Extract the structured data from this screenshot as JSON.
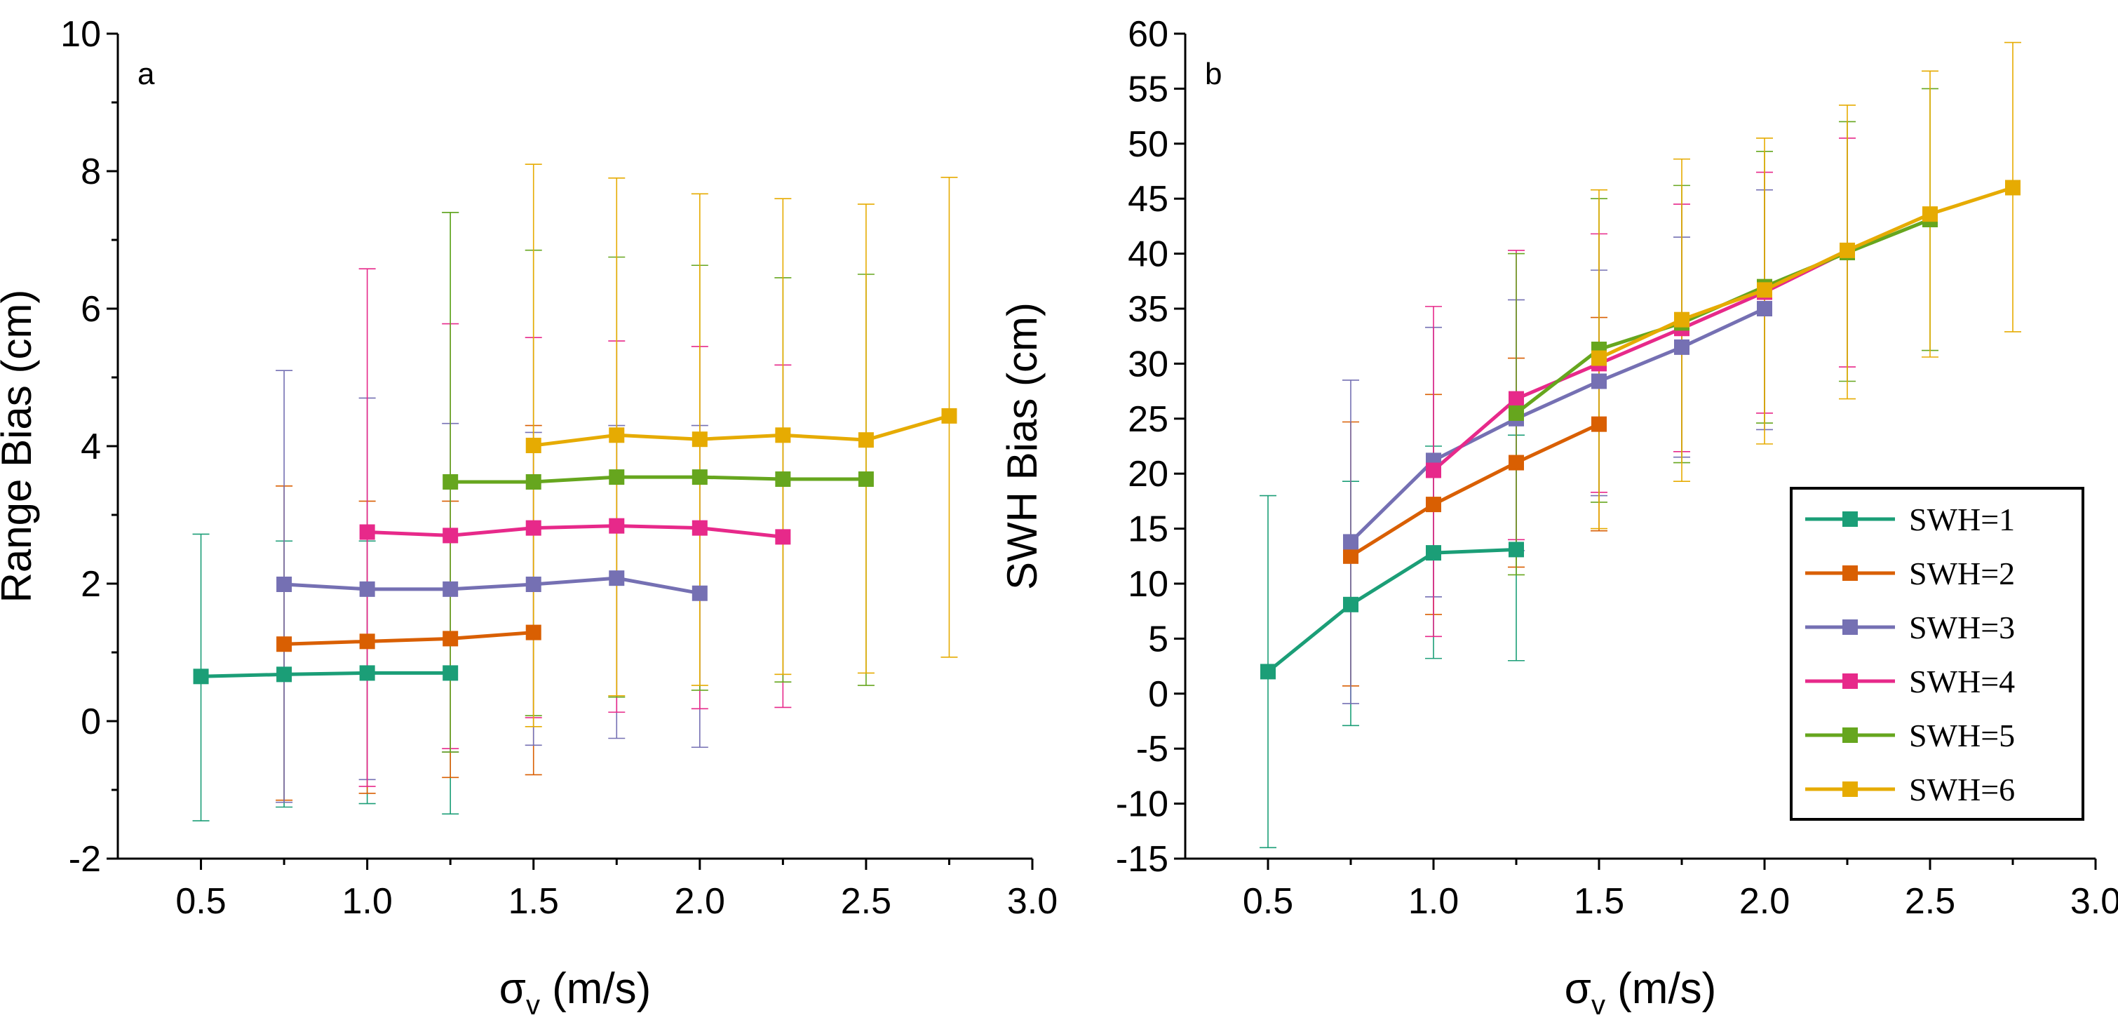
{
  "series_meta": [
    {
      "name": "SWH=1",
      "color": "#1b9e77"
    },
    {
      "name": "SWH=2",
      "color": "#d95f02"
    },
    {
      "name": "SWH=3",
      "color": "#7570b3"
    },
    {
      "name": "SWH=4",
      "color": "#e7298a"
    },
    {
      "name": "SWH=5",
      "color": "#66a61e"
    },
    {
      "name": "SWH=6",
      "color": "#e6ab02"
    }
  ],
  "chart_data": [
    {
      "type": "line",
      "panel_label": "a",
      "title": "",
      "xlabel_main": "σ",
      "xlabel_sub": "v",
      "xlabel_unit": " (m/s)",
      "ylabel": "Range Bias (cm)",
      "xlim": [
        0.25,
        3.0
      ],
      "ylim": [
        -2,
        10
      ],
      "xticks": [
        0.5,
        1.0,
        1.5,
        2.0,
        2.5,
        3.0
      ],
      "xtick_labels": [
        "0.5",
        "1.0",
        "1.5",
        "2.0",
        "2.5",
        "3.0"
      ],
      "yticks": [
        -2,
        0,
        2,
        4,
        6,
        8,
        10
      ],
      "ytick_labels": [
        "-2",
        "0",
        "2",
        "4",
        "6",
        "8",
        "10"
      ],
      "yminor": [
        -1,
        1,
        3,
        5,
        7,
        9
      ],
      "series": [
        {
          "name": "SWH=1",
          "x": [
            0.5,
            0.75,
            1.0,
            1.25
          ],
          "y": [
            0.65,
            0.68,
            0.7,
            0.7
          ],
          "upper": [
            2.72,
            2.62,
            2.62,
            7.4
          ],
          "lower": [
            -1.45,
            -1.25,
            -1.2,
            -1.35
          ]
        },
        {
          "name": "SWH=2",
          "x": [
            0.75,
            1.0,
            1.25,
            1.5
          ],
          "y": [
            1.12,
            1.16,
            1.2,
            1.29
          ],
          "upper": [
            3.42,
            3.2,
            3.2,
            4.3
          ],
          "lower": [
            -1.15,
            -1.05,
            -0.82,
            -0.78
          ]
        },
        {
          "name": "SWH=3",
          "x": [
            0.75,
            1.0,
            1.25,
            1.5,
            1.75,
            2.0
          ],
          "y": [
            1.99,
            1.92,
            1.92,
            1.99,
            2.08,
            1.86
          ],
          "upper": [
            5.1,
            4.7,
            4.33,
            4.2,
            4.3,
            4.3
          ],
          "lower": [
            -1.18,
            -0.85,
            -0.45,
            -0.35,
            -0.25,
            -0.38
          ]
        },
        {
          "name": "SWH=4",
          "x": [
            1.0,
            1.25,
            1.5,
            1.75,
            2.0,
            2.25
          ],
          "y": [
            2.75,
            2.7,
            2.81,
            2.84,
            2.81,
            2.68
          ],
          "upper": [
            6.58,
            5.78,
            5.58,
            5.53,
            5.45,
            5.18
          ],
          "lower": [
            -0.95,
            -0.4,
            0.05,
            0.13,
            0.18,
            0.2
          ]
        },
        {
          "name": "SWH=5",
          "x": [
            1.25,
            1.5,
            1.75,
            2.0,
            2.25,
            2.5
          ],
          "y": [
            3.48,
            3.48,
            3.55,
            3.55,
            3.52,
            3.52
          ],
          "upper": [
            7.4,
            6.85,
            6.75,
            6.63,
            6.45,
            6.5
          ],
          "lower": [
            -0.45,
            0.08,
            0.35,
            0.45,
            0.57,
            0.52
          ]
        },
        {
          "name": "SWH=6",
          "x": [
            1.5,
            1.75,
            2.0,
            2.25,
            2.5,
            2.75
          ],
          "y": [
            4.01,
            4.16,
            4.1,
            4.16,
            4.09,
            4.44
          ],
          "upper": [
            8.1,
            7.9,
            7.67,
            7.6,
            7.52,
            7.91
          ],
          "lower": [
            -0.08,
            0.37,
            0.52,
            0.68,
            0.7,
            0.93
          ]
        }
      ]
    },
    {
      "type": "line",
      "panel_label": "b",
      "title": "",
      "xlabel_main": "σ",
      "xlabel_sub": "v",
      "xlabel_unit": " (m/s)",
      "ylabel": "SWH Bias (cm)",
      "xlim": [
        0.25,
        3.0
      ],
      "ylim": [
        -15,
        60
      ],
      "xticks": [
        0.5,
        1.0,
        1.5,
        2.0,
        2.5,
        3.0
      ],
      "xtick_labels": [
        "0.5",
        "1.0",
        "1.5",
        "2.0",
        "2.5",
        "3.0"
      ],
      "yticks": [
        -15,
        -10,
        -5,
        0,
        5,
        10,
        15,
        20,
        25,
        30,
        35,
        40,
        45,
        50,
        55,
        60
      ],
      "ytick_labels": [
        "-15",
        "-10",
        "-5",
        "0",
        "5",
        "10",
        "15",
        "20",
        "25",
        "30",
        "35",
        "40",
        "45",
        "50",
        "55",
        "60"
      ],
      "yminor": [],
      "legend": {
        "position": "lower-right",
        "entries": [
          "SWH=1",
          "SWH=2",
          "SWH=3",
          "SWH=4",
          "SWH=5",
          "SWH=6"
        ]
      },
      "series": [
        {
          "name": "SWH=1",
          "x": [
            0.5,
            0.75,
            1.0,
            1.25
          ],
          "y": [
            2.0,
            8.1,
            12.8,
            13.1
          ],
          "upper": [
            18.0,
            19.3,
            22.5,
            23.5
          ],
          "lower": [
            -14.0,
            -2.9,
            3.2,
            3.0
          ]
        },
        {
          "name": "SWH=2",
          "x": [
            0.75,
            1.0,
            1.25,
            1.5
          ],
          "y": [
            12.5,
            17.2,
            21.0,
            24.5
          ],
          "upper": [
            24.7,
            27.2,
            30.5,
            34.2
          ],
          "lower": [
            0.7,
            7.2,
            11.5,
            14.8
          ]
        },
        {
          "name": "SWH=3",
          "x": [
            0.75,
            1.0,
            1.25,
            1.5,
            1.75,
            2.0
          ],
          "y": [
            13.8,
            21.2,
            25.0,
            28.4,
            31.5,
            35.0
          ],
          "upper": [
            28.5,
            33.3,
            35.8,
            38.5,
            41.5,
            45.8
          ],
          "lower": [
            -0.9,
            8.8,
            13.0,
            18.0,
            21.5,
            24.0
          ]
        },
        {
          "name": "SWH=4",
          "x": [
            1.0,
            1.25,
            1.5,
            1.75,
            2.0,
            2.25
          ],
          "y": [
            20.3,
            26.8,
            30.0,
            33.2,
            36.5,
            40.2
          ],
          "upper": [
            35.2,
            40.3,
            41.8,
            44.5,
            47.4,
            50.5
          ],
          "lower": [
            5.2,
            14.0,
            18.3,
            22.0,
            25.5,
            29.7
          ]
        },
        {
          "name": "SWH=5",
          "x": [
            1.25,
            1.5,
            1.75,
            2.0,
            2.25,
            2.5
          ],
          "y": [
            25.5,
            31.3,
            33.7,
            37.0,
            40.1,
            43.1
          ],
          "upper": [
            40.0,
            45.0,
            46.2,
            49.3,
            52.0,
            55.0
          ],
          "lower": [
            10.8,
            17.4,
            21.0,
            24.6,
            28.4,
            31.2
          ]
        },
        {
          "name": "SWH=6",
          "x": [
            1.5,
            1.75,
            2.0,
            2.25,
            2.5,
            2.75
          ],
          "y": [
            30.5,
            34.0,
            36.7,
            40.3,
            43.6,
            46.0
          ],
          "upper": [
            45.8,
            48.6,
            50.5,
            53.5,
            56.6,
            59.2
          ],
          "lower": [
            15.0,
            19.3,
            22.7,
            26.8,
            30.6,
            32.9
          ]
        }
      ]
    }
  ]
}
